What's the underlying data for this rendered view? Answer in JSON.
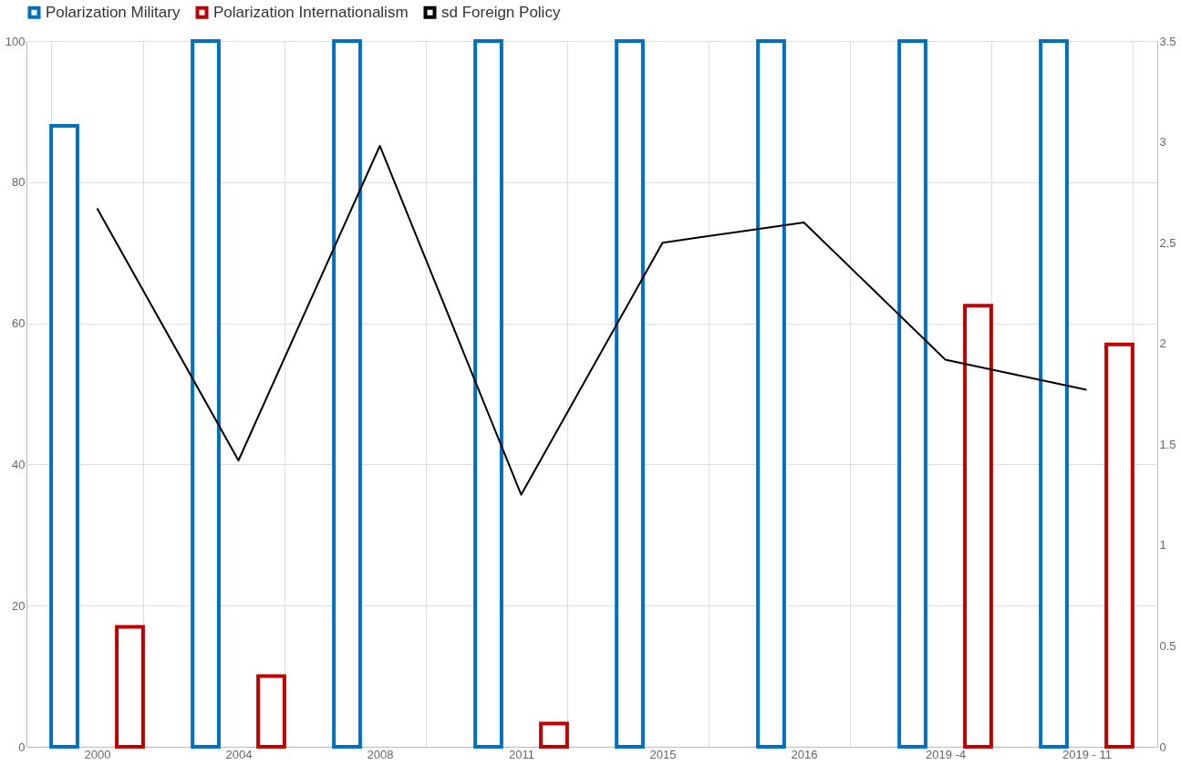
{
  "chart_data": {
    "type": "bar",
    "categories": [
      "2000",
      "2004",
      "2008",
      "2011",
      "2015",
      "2016",
      "2019 -4",
      "2019 - 11"
    ],
    "series": [
      {
        "name": "Polarization Military",
        "color": "#0070c0",
        "values": [
          88,
          100,
          100,
          100,
          100,
          100,
          100,
          100
        ]
      },
      {
        "name": "Polarization Internationalism",
        "color": "#c00000",
        "values": [
          17,
          10,
          null,
          3.3,
          null,
          null,
          62.5,
          57
        ]
      },
      {
        "name": "sd Foreign Policy",
        "color": "#000000",
        "type": "line",
        "axis": "y2",
        "values": [
          2.67,
          1.42,
          2.98,
          1.25,
          2.5,
          2.6,
          1.92,
          1.77
        ]
      }
    ],
    "ylim": [
      0,
      100
    ],
    "yticks": [
      0,
      20,
      40,
      60,
      80,
      100
    ],
    "y2lim": [
      0,
      3.5
    ],
    "y2ticks": [
      0,
      0.5,
      1,
      1.5,
      2,
      2.5,
      3,
      3.5
    ],
    "grid": true,
    "legend": "top"
  }
}
